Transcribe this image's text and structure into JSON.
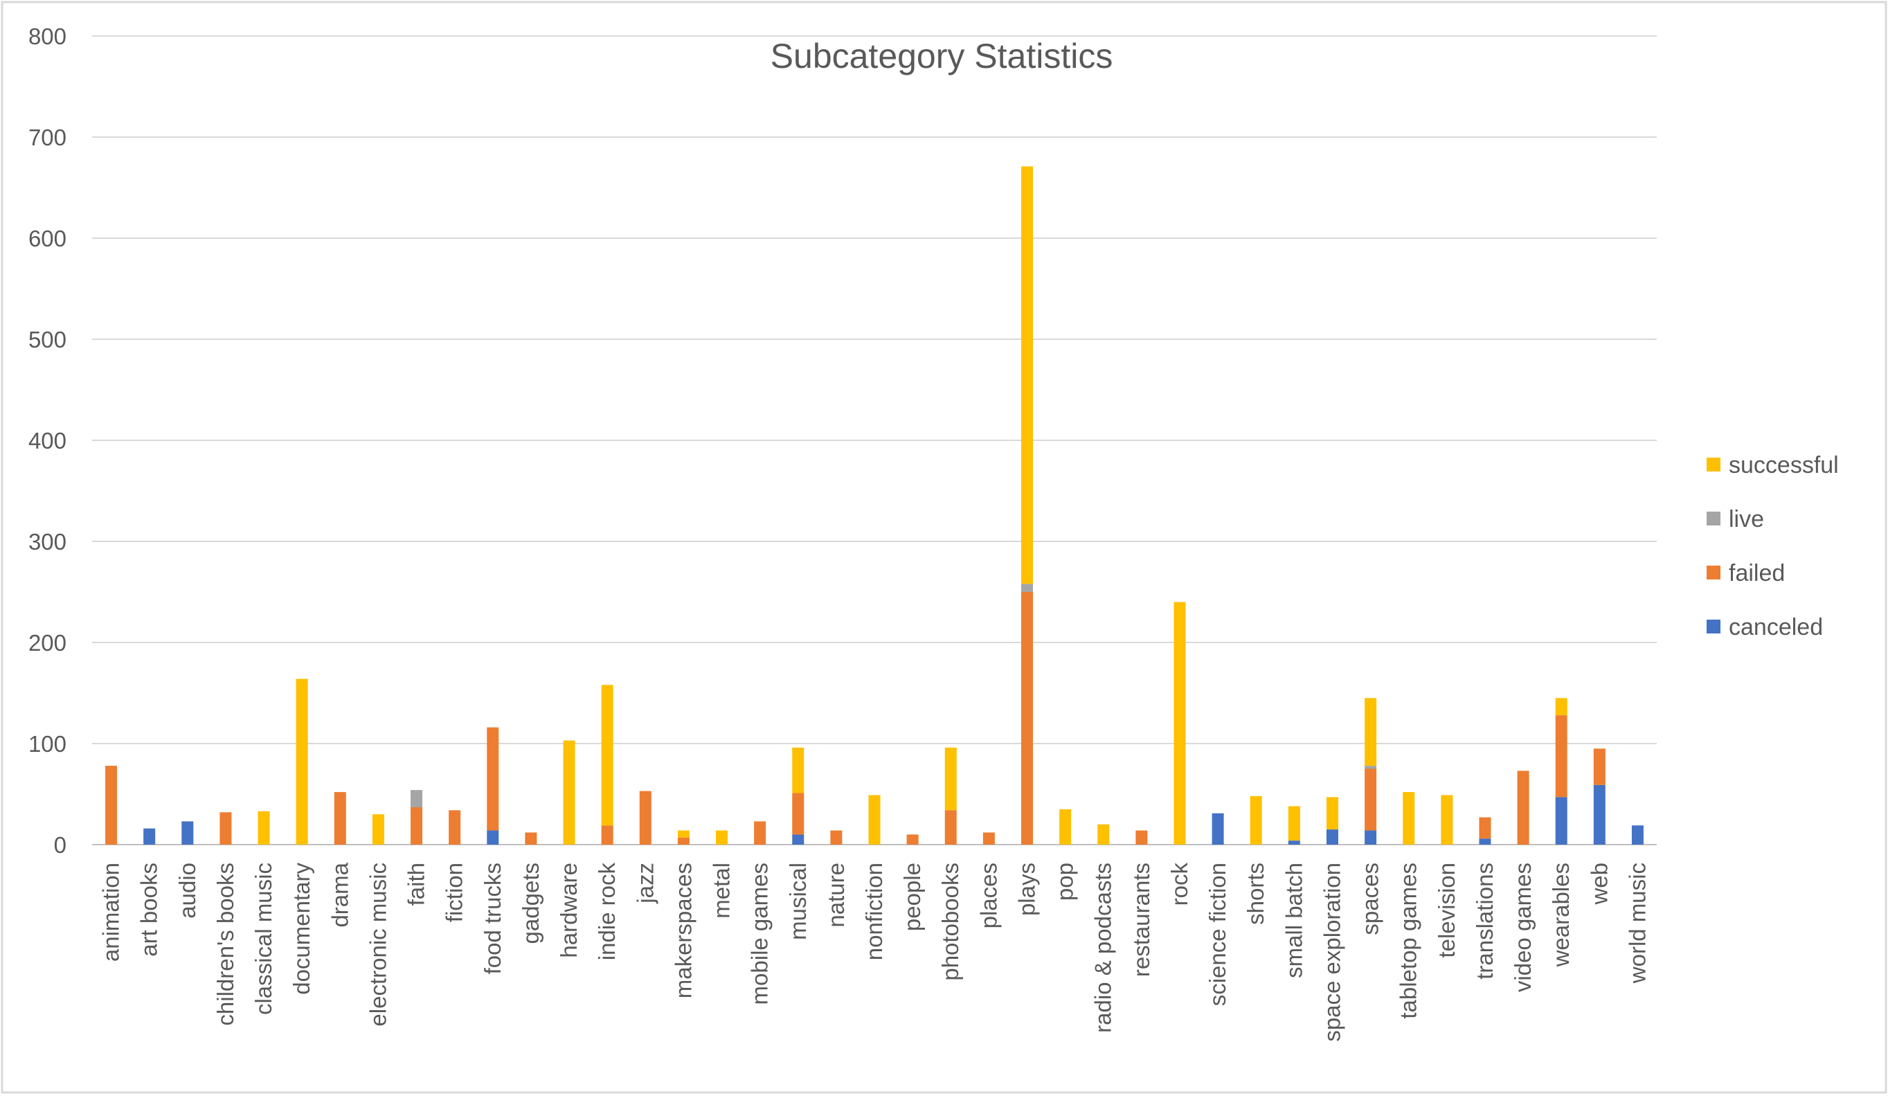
{
  "chart_data": {
    "type": "bar",
    "stacked": true,
    "title": "Subcategory Statistics",
    "xlabel": "",
    "ylabel": "",
    "ylim": [
      0,
      800
    ],
    "yticks": [
      0,
      100,
      200,
      300,
      400,
      500,
      600,
      700,
      800
    ],
    "grid": true,
    "legend_position": "right",
    "categories": [
      "animation",
      "art books",
      "audio",
      "children's books",
      "classical music",
      "documentary",
      "drama",
      "electronic music",
      "faith",
      "fiction",
      "food trucks",
      "gadgets",
      "hardware",
      "indie rock",
      "jazz",
      "makerspaces",
      "metal",
      "mobile games",
      "musical",
      "nature",
      "nonfiction",
      "people",
      "photobooks",
      "places",
      "plays",
      "pop",
      "radio & podcasts",
      "restaurants",
      "rock",
      "science fiction",
      "shorts",
      "small batch",
      "space exploration",
      "spaces",
      "tabletop games",
      "television",
      "translations",
      "video games",
      "wearables",
      "web",
      "world music"
    ],
    "series": [
      {
        "name": "canceled",
        "color": "#4472C4",
        "values": [
          0,
          16,
          23,
          0,
          0,
          0,
          0,
          0,
          0,
          0,
          14,
          0,
          0,
          0,
          0,
          0,
          0,
          0,
          10,
          0,
          0,
          0,
          0,
          0,
          0,
          0,
          0,
          0,
          0,
          31,
          0,
          4,
          15,
          14,
          0,
          0,
          6,
          0,
          47,
          59,
          19
        ]
      },
      {
        "name": "failed",
        "color": "#ED7D31",
        "values": [
          78,
          0,
          0,
          32,
          0,
          0,
          52,
          0,
          37,
          34,
          102,
          12,
          0,
          19,
          53,
          7,
          0,
          23,
          41,
          14,
          0,
          10,
          34,
          12,
          250,
          0,
          0,
          14,
          0,
          0,
          0,
          0,
          0,
          61,
          0,
          0,
          21,
          73,
          81,
          36,
          0
        ]
      },
      {
        "name": "live",
        "color": "#A5A5A5",
        "values": [
          0,
          0,
          0,
          0,
          0,
          0,
          0,
          0,
          17,
          0,
          0,
          0,
          0,
          0,
          0,
          0,
          0,
          0,
          0,
          0,
          0,
          0,
          0,
          0,
          8,
          0,
          0,
          0,
          0,
          0,
          0,
          0,
          0,
          3,
          0,
          0,
          0,
          0,
          0,
          0,
          0
        ]
      },
      {
        "name": "successful",
        "color": "#FFC000",
        "values": [
          0,
          0,
          0,
          0,
          33,
          164,
          0,
          30,
          0,
          0,
          0,
          0,
          103,
          139,
          0,
          7,
          14,
          0,
          45,
          0,
          49,
          0,
          62,
          0,
          413,
          35,
          20,
          0,
          240,
          0,
          48,
          34,
          32,
          67,
          52,
          49,
          0,
          0,
          17,
          0,
          0
        ]
      }
    ]
  }
}
